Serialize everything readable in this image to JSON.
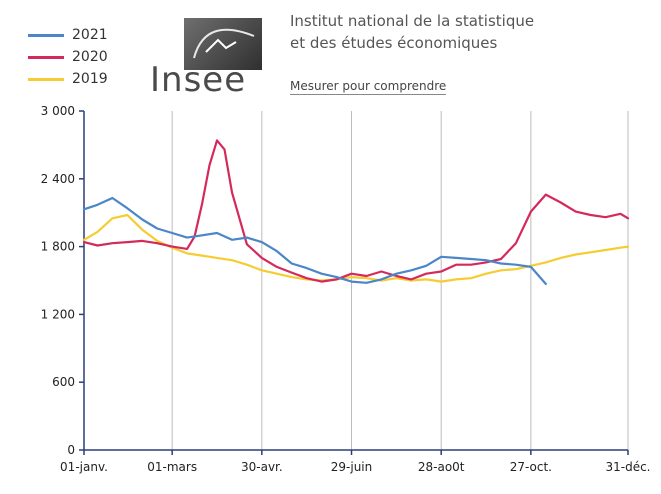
{
  "header": {
    "logo_text": "Insee",
    "institution_line1": "Institut national de la statistique",
    "institution_line2": "et des études économiques",
    "tagline": "Mesurer pour comprendre"
  },
  "colors": {
    "2021": "#4a86c8",
    "2020": "#d42a5b",
    "2019": "#f5cc32",
    "grid": "#bcbcbc",
    "axis": "#2c3e7a"
  },
  "chart_data": {
    "type": "line",
    "title": "",
    "xlabel": "",
    "ylabel": "",
    "ylim": [
      0,
      3000
    ],
    "yticks": [
      "0",
      "600",
      "1 200",
      "1 800",
      "2 400",
      "3 000"
    ],
    "ytick_values": [
      0,
      600,
      1200,
      1800,
      2400,
      3000
    ],
    "xticks": [
      "01-janv.",
      "01-mars",
      "30-avr.",
      "29-juin",
      "28-ao0t",
      "27-oct.",
      "31-déc."
    ],
    "xtick_days": [
      1,
      60,
      120,
      180,
      240,
      300,
      365
    ],
    "xlim": [
      1,
      365
    ],
    "grid": "vertical",
    "legend_position": "top-left",
    "series": [
      {
        "name": "2021",
        "x": [
          1,
          10,
          20,
          30,
          40,
          50,
          60,
          70,
          80,
          90,
          100,
          110,
          120,
          130,
          140,
          150,
          160,
          170,
          180,
          190,
          200,
          210,
          220,
          230,
          240,
          250,
          260,
          270,
          280,
          290,
          300,
          310
        ],
        "y": [
          2130,
          2170,
          2230,
          2140,
          2040,
          1960,
          1920,
          1880,
          1900,
          1920,
          1860,
          1880,
          1840,
          1760,
          1650,
          1610,
          1560,
          1530,
          1490,
          1480,
          1510,
          1560,
          1590,
          1630,
          1710,
          1700,
          1690,
          1680,
          1650,
          1640,
          1620,
          1470
        ]
      },
      {
        "name": "2020",
        "x": [
          1,
          10,
          20,
          30,
          40,
          50,
          60,
          70,
          75,
          80,
          85,
          90,
          95,
          100,
          110,
          120,
          130,
          140,
          150,
          160,
          170,
          180,
          190,
          200,
          210,
          220,
          230,
          240,
          250,
          260,
          270,
          280,
          290,
          300,
          310,
          320,
          330,
          340,
          350,
          360,
          365
        ],
        "y": [
          1840,
          1810,
          1830,
          1840,
          1850,
          1830,
          1800,
          1780,
          1890,
          2180,
          2520,
          2740,
          2660,
          2280,
          1820,
          1700,
          1620,
          1570,
          1520,
          1490,
          1510,
          1560,
          1540,
          1580,
          1540,
          1510,
          1560,
          1580,
          1640,
          1640,
          1660,
          1690,
          1830,
          2110,
          2260,
          2190,
          2110,
          2080,
          2060,
          2090,
          2050
        ]
      },
      {
        "name": "2019",
        "x": [
          1,
          10,
          20,
          30,
          40,
          50,
          60,
          70,
          80,
          90,
          100,
          110,
          120,
          130,
          140,
          150,
          160,
          170,
          180,
          190,
          200,
          210,
          220,
          230,
          240,
          250,
          260,
          270,
          280,
          290,
          300,
          310,
          320,
          330,
          340,
          350,
          360,
          365
        ],
        "y": [
          1860,
          1930,
          2050,
          2080,
          1950,
          1850,
          1790,
          1740,
          1720,
          1700,
          1680,
          1640,
          1590,
          1560,
          1530,
          1510,
          1500,
          1510,
          1530,
          1520,
          1500,
          1520,
          1500,
          1510,
          1490,
          1510,
          1520,
          1560,
          1590,
          1600,
          1630,
          1660,
          1700,
          1730,
          1750,
          1770,
          1790,
          1800
        ]
      }
    ]
  }
}
